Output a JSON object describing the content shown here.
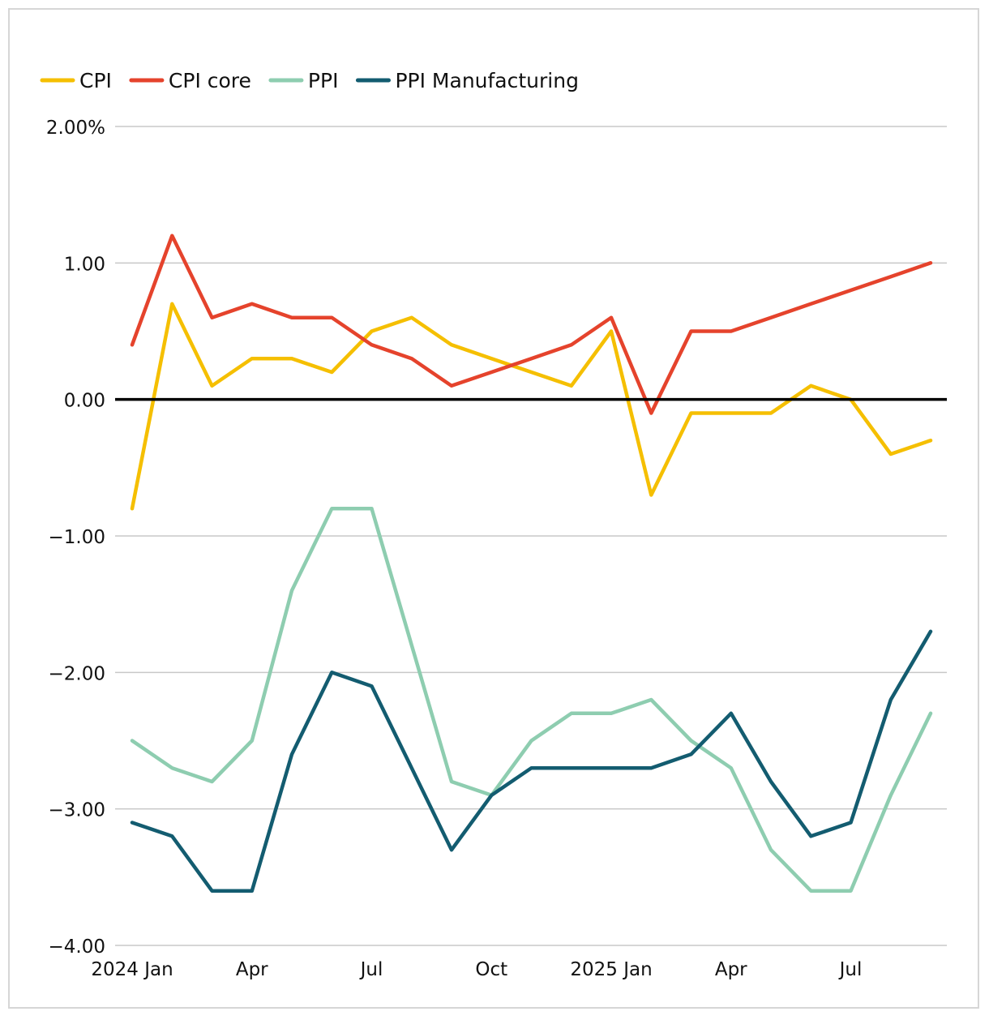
{
  "chart_data": {
    "type": "line",
    "title": "",
    "xlabel": "",
    "ylabel": "",
    "ylim": [
      -4,
      2
    ],
    "y_ticks": [
      {
        "value": 2,
        "label": "2.00%"
      },
      {
        "value": 1,
        "label": "1.00"
      },
      {
        "value": 0,
        "label": "0.00"
      },
      {
        "value": -1,
        "label": "−1.00"
      },
      {
        "value": -2,
        "label": "−2.00"
      },
      {
        "value": -3,
        "label": "−3.00"
      },
      {
        "value": -4,
        "label": "−4.00"
      }
    ],
    "x": [
      "2024 Jan",
      "2024 Feb",
      "2024 Mar",
      "2024 Apr",
      "2024 May",
      "2024 Jun",
      "2024 Jul",
      "2024 Aug",
      "2024 Sep",
      "2024 Oct",
      "2024 Nov",
      "2024 Dec",
      "2025 Jan",
      "2025 Feb",
      "2025 Mar",
      "2025 Apr",
      "2025 May",
      "2025 Jun",
      "2025 Jul",
      "2025 Aug",
      "2025 Sep"
    ],
    "x_ticks": [
      {
        "index": 0,
        "label": "2024 Jan"
      },
      {
        "index": 3,
        "label": "Apr"
      },
      {
        "index": 6,
        "label": "Jul"
      },
      {
        "index": 9,
        "label": "Oct"
      },
      {
        "index": 12,
        "label": "2025 Jan"
      },
      {
        "index": 15,
        "label": "Apr"
      },
      {
        "index": 18,
        "label": "Jul"
      }
    ],
    "legend_position": "top-left",
    "zero_line": true,
    "series": [
      {
        "name": "CPI",
        "color": "#f5bf00",
        "values": [
          -0.8,
          0.7,
          0.1,
          0.3,
          0.3,
          0.2,
          0.5,
          0.6,
          0.4,
          0.3,
          0.2,
          0.1,
          0.5,
          -0.7,
          -0.1,
          -0.1,
          -0.1,
          0.1,
          0.0,
          -0.4,
          -0.3
        ]
      },
      {
        "name": "CPI core",
        "color": "#e5432c",
        "values": [
          0.4,
          1.2,
          0.6,
          0.7,
          0.6,
          0.6,
          0.4,
          0.3,
          0.1,
          0.2,
          0.3,
          0.4,
          0.6,
          -0.1,
          0.5,
          0.5,
          0.6,
          0.7,
          0.8,
          0.9,
          1.0
        ]
      },
      {
        "name": "PPI",
        "color": "#8ecdb0",
        "values": [
          -2.5,
          -2.7,
          -2.8,
          -2.5,
          -1.4,
          -0.8,
          -0.8,
          -1.8,
          -2.8,
          -2.9,
          -2.5,
          -2.3,
          -2.3,
          -2.2,
          -2.5,
          -2.7,
          -3.3,
          -3.6,
          -3.6,
          -2.9,
          -2.3
        ]
      },
      {
        "name": "PPI Manufacturing",
        "color": "#135c70",
        "values": [
          -3.1,
          -3.2,
          -3.6,
          -3.6,
          -2.6,
          -2.0,
          -2.1,
          -2.7,
          -3.3,
          -2.9,
          -2.7,
          -2.7,
          -2.7,
          -2.7,
          -2.6,
          -2.3,
          -2.8,
          -3.2,
          -3.1,
          -2.2,
          -1.7
        ]
      }
    ]
  }
}
